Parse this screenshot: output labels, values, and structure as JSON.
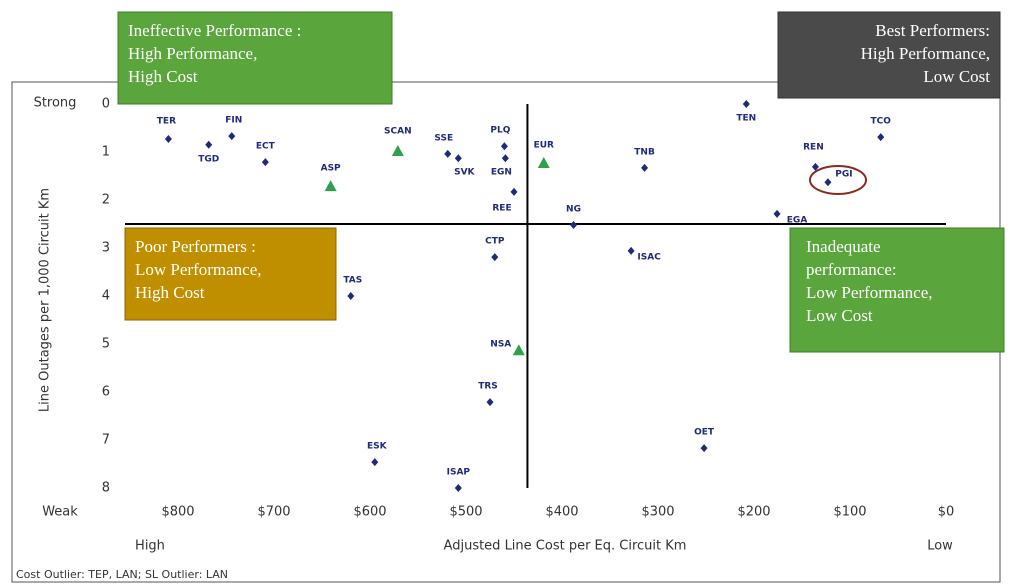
{
  "chart_data": {
    "type": "scatter",
    "x_label": "Adjusted Line Cost per Eq. Circuit Km",
    "y_label": "Line Outages per 1,000 Circuit Km",
    "x_low_end": "High",
    "x_high_end": "Low",
    "y_top_end": "Strong",
    "y_bottom_end": "Weak",
    "footnote": "Cost Outlier: TEP, LAN; SL Outlier: LAN",
    "xlim": [
      800,
      0
    ],
    "xticks": [
      {
        "value": 800,
        "label": "$800"
      },
      {
        "value": 700,
        "label": "$700"
      },
      {
        "value": 600,
        "label": "$600"
      },
      {
        "value": 500,
        "label": "$500"
      },
      {
        "value": 400,
        "label": "$400"
      },
      {
        "value": 300,
        "label": "$300"
      },
      {
        "value": 200,
        "label": "$200"
      },
      {
        "value": 100,
        "label": "$100"
      },
      {
        "value": 0,
        "label": "$0"
      }
    ],
    "ylim": [
      8,
      0
    ],
    "yticks": [
      0,
      1,
      2,
      3,
      4,
      5,
      6,
      7,
      8
    ],
    "reference_lines": {
      "x": 436,
      "y": 2.5
    },
    "series": [
      {
        "marker": "diamond",
        "color": "#1f2a7a",
        "labels": [
          "TER",
          "TGD",
          "FIN",
          "ECT",
          "SSE",
          "SVK",
          "PLQ",
          "EGN",
          "REE",
          "CTP",
          "TRS",
          "ESK",
          "ISAP",
          "TAS",
          "NG",
          "ISAC",
          "TNB",
          "TEN",
          "OET",
          "REN",
          "PGI",
          "EGA",
          "TCO"
        ],
        "x": [
          810,
          768,
          744,
          709,
          519,
          508,
          460,
          459,
          450,
          470,
          475,
          595,
          508,
          620,
          388,
          328,
          314,
          208,
          252,
          136,
          123,
          176,
          68
        ],
        "values": [
          0.73,
          0.85,
          0.67,
          1.21,
          1.04,
          1.13,
          0.88,
          1.13,
          1.83,
          3.19,
          6.21,
          7.46,
          8.0,
          4.0,
          2.52,
          3.06,
          1.33,
          0,
          7.17,
          1.31,
          1.63,
          2.29,
          0.69
        ]
      },
      {
        "marker": "triangle",
        "color": "#2ea24a",
        "labels": [
          "ASP",
          "SCAN",
          "EUR",
          "NSA"
        ],
        "x": [
          641,
          571,
          419,
          445
        ],
        "values": [
          1.71,
          0.98,
          1.23,
          5.13
        ]
      }
    ],
    "quadrants": [
      {
        "lines": [
          "Ineffective Performance :",
          "High Performance,",
          "High Cost"
        ]
      },
      {
        "lines": [
          "Best Performers:",
          "High Performance,",
          "Low Cost"
        ]
      },
      {
        "lines": [
          "Poor Performers :",
          "Low Performance,",
          "High Cost"
        ]
      },
      {
        "lines": [
          "Inadequate",
          "performance:",
          "Low Performance,",
          "Low Cost"
        ]
      }
    ]
  }
}
